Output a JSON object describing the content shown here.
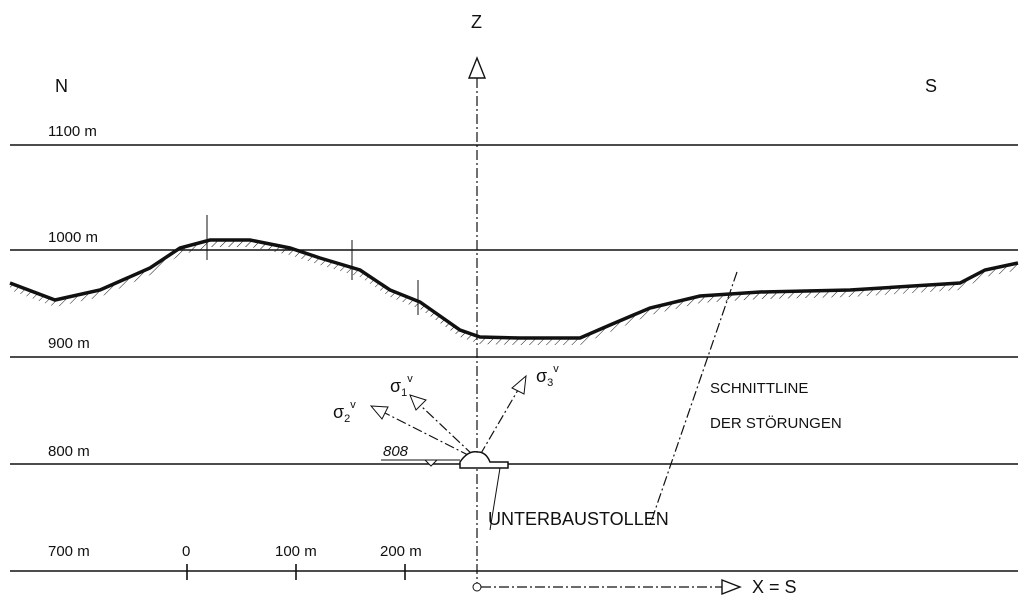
{
  "axes": {
    "z": "Z",
    "x": "X = S"
  },
  "directions": {
    "north": "N",
    "south": "S"
  },
  "elevations": [
    "1100 m",
    "1000 m",
    "900 m",
    "800 m",
    "700 m"
  ],
  "scale": [
    "0",
    "100 m",
    "200 m"
  ],
  "stresses": [
    {
      "symbol": "σ",
      "sub": "1",
      "sup": "v"
    },
    {
      "symbol": "σ",
      "sub": "2",
      "sup": "v"
    },
    {
      "symbol": "σ",
      "sub": "3",
      "sup": "v"
    }
  ],
  "level_mark": "808",
  "fault_label": [
    "SCHNITTLINE",
    "DER STÖRUNGEN"
  ],
  "tunnel_label": "UNTERBAUSTOLLEN"
}
